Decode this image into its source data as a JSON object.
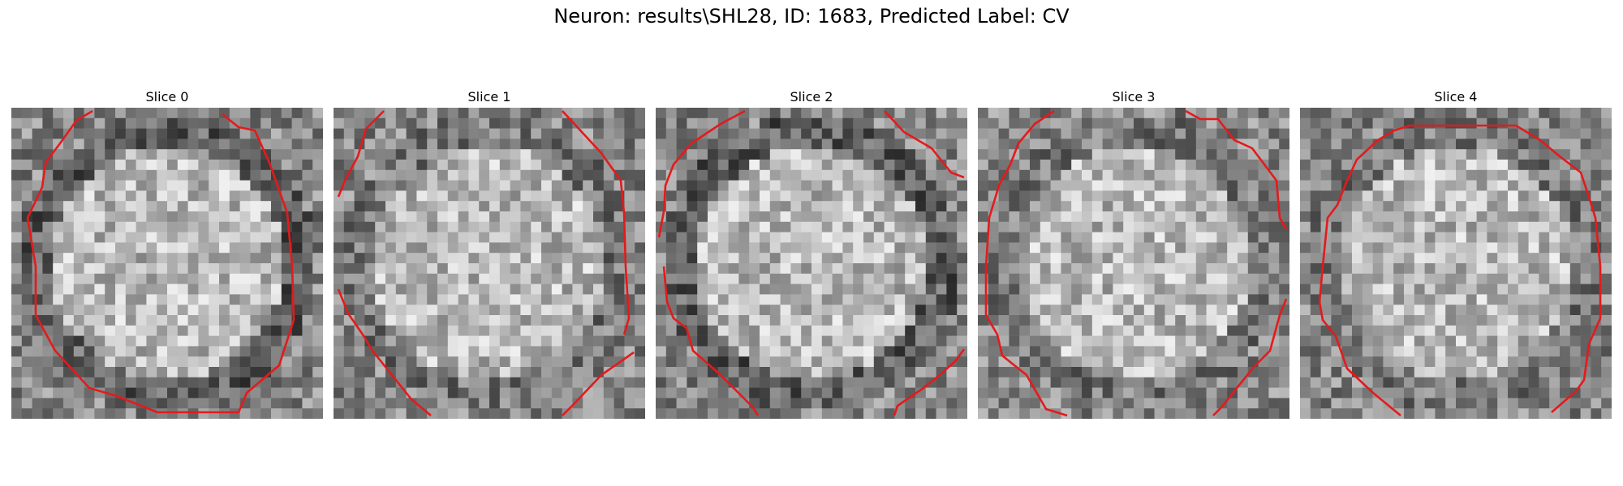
{
  "figure": {
    "title": "Neuron: results\\SHL28, ID: 1683, Predicted Label: CV",
    "contour_color": "#e41a1c",
    "panels": [
      {
        "title": "Slice 0",
        "seed": 11,
        "dark_rim": true
      },
      {
        "title": "Slice 1",
        "seed": 23,
        "dark_rim": false
      },
      {
        "title": "Slice 2",
        "seed": 37,
        "dark_rim": true
      },
      {
        "title": "Slice 3",
        "seed": 41,
        "dark_rim": false
      },
      {
        "title": "Slice 4",
        "seed": 53,
        "dark_rim": false
      }
    ]
  }
}
